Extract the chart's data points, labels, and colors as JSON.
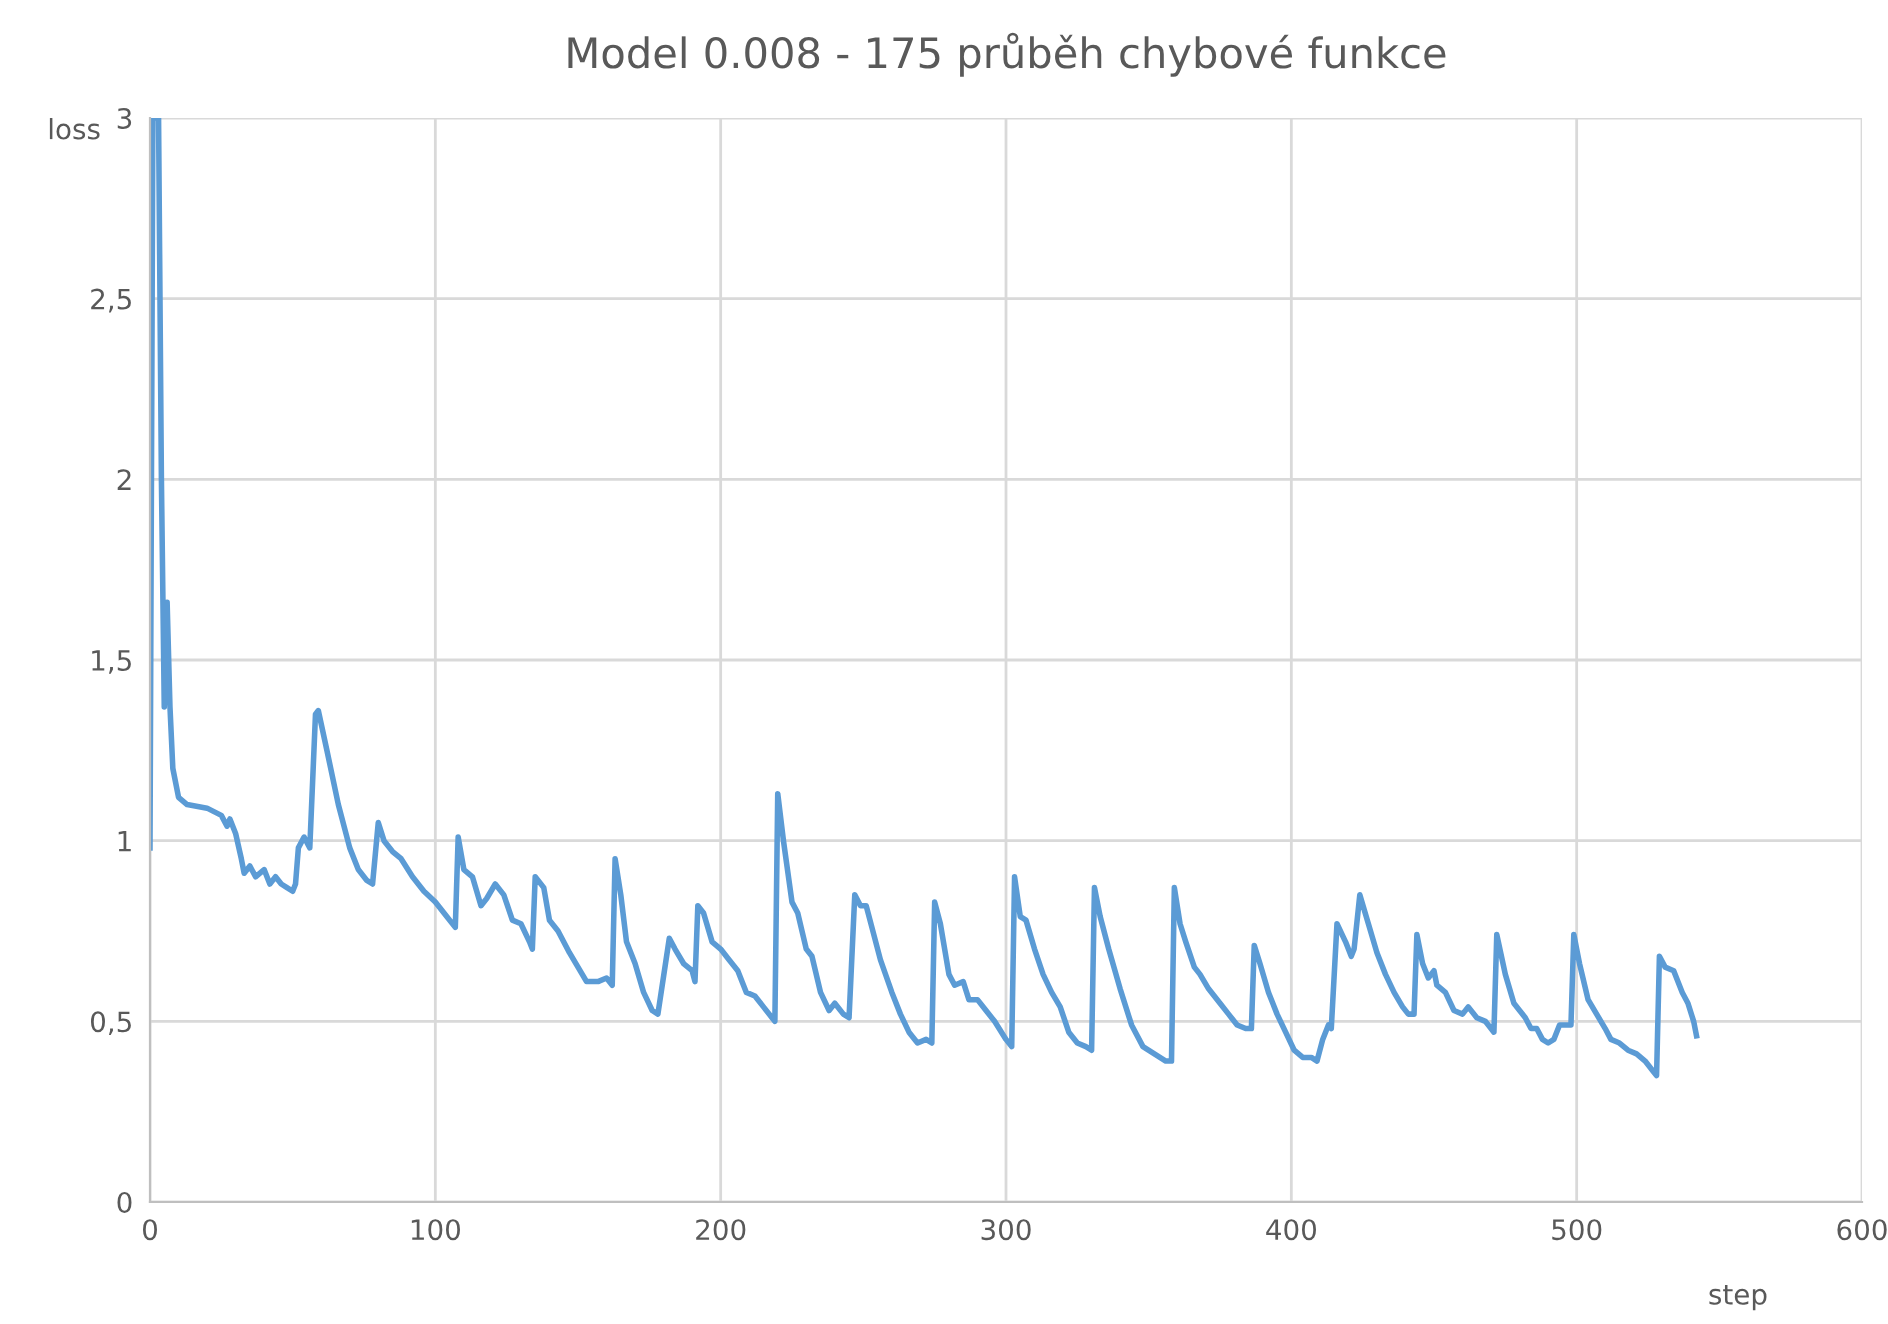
{
  "chart_data": {
    "type": "line",
    "title": "Model 0.008 - 175 průběh chybové funkce",
    "xlabel": "step",
    "ylabel": "loss",
    "xlim": [
      0,
      600
    ],
    "xticks": [
      0,
      100,
      200,
      300,
      400,
      500,
      600
    ],
    "ylim": [
      0,
      3
    ],
    "yticks": [
      0,
      {
        "value": 0.5,
        "label": "0,5"
      },
      1,
      {
        "value": 1.5,
        "label": "1,5"
      },
      2,
      {
        "value": 2.5,
        "label": "2,5"
      },
      3
    ],
    "grid": true,
    "legend": false,
    "series": [
      {
        "color": "#5b9bd5",
        "x": [
          0,
          1,
          2,
          3,
          4,
          5,
          6,
          7,
          8,
          10,
          13,
          20,
          25,
          27,
          28,
          30,
          32,
          33,
          35,
          37,
          40,
          42,
          44,
          46,
          48,
          50,
          51,
          52,
          54,
          56,
          58,
          59,
          62,
          66,
          70,
          73,
          76,
          78,
          80,
          82,
          85,
          88,
          92,
          96,
          100,
          104,
          107,
          108,
          110,
          113,
          116,
          118,
          121,
          124,
          127,
          130,
          133,
          134,
          135,
          138,
          140,
          143,
          147,
          150,
          153,
          157,
          160,
          162,
          163,
          165,
          167,
          170,
          173,
          176,
          178,
          182,
          184,
          187,
          190,
          191,
          192,
          194,
          197,
          200,
          203,
          206,
          209,
          212,
          215,
          218,
          219,
          220,
          222,
          225,
          227,
          230,
          232,
          235,
          238,
          240,
          243,
          245,
          247,
          249,
          251,
          253,
          256,
          260,
          263,
          266,
          269,
          272,
          274,
          275,
          277,
          280,
          282,
          285,
          287,
          290,
          293,
          296,
          300,
          302,
          303,
          305,
          307,
          310,
          313,
          316,
          319,
          322,
          325,
          328,
          330,
          331,
          333,
          336,
          340,
          344,
          348,
          352,
          356,
          358,
          359,
          361,
          363,
          366,
          368,
          371,
          375,
          378,
          381,
          384,
          386,
          387,
          389,
          392,
          395,
          398,
          401,
          404,
          407,
          409,
          411,
          413,
          414,
          416,
          419,
          421,
          422,
          424,
          427,
          430,
          433,
          436,
          439,
          441,
          443,
          444,
          446,
          447,
          448,
          450,
          451,
          454,
          457,
          460,
          462,
          465,
          468,
          471,
          472,
          475,
          478,
          480,
          482,
          484,
          486,
          488,
          490,
          492,
          494,
          498,
          499,
          501,
          504,
          507,
          510,
          512,
          515,
          518,
          521,
          524,
          527,
          528,
          529,
          531,
          534,
          537,
          539,
          541,
          542
        ],
        "values": [
          0.98,
          3,
          3,
          3,
          2.0,
          1.37,
          1.66,
          1.37,
          1.2,
          1.12,
          1.1,
          1.09,
          1.07,
          1.04,
          1.06,
          1.02,
          0.95,
          0.91,
          0.93,
          0.9,
          0.92,
          0.88,
          0.9,
          0.88,
          0.87,
          0.86,
          0.88,
          0.98,
          1.01,
          0.98,
          1.35,
          1.36,
          1.25,
          1.1,
          0.98,
          0.92,
          0.89,
          0.88,
          1.05,
          1.0,
          0.97,
          0.95,
          0.9,
          0.86,
          0.83,
          0.79,
          0.76,
          1.01,
          0.92,
          0.9,
          0.82,
          0.84,
          0.88,
          0.85,
          0.78,
          0.77,
          0.72,
          0.7,
          0.9,
          0.87,
          0.78,
          0.75,
          0.69,
          0.65,
          0.61,
          0.61,
          0.62,
          0.6,
          0.95,
          0.85,
          0.72,
          0.66,
          0.58,
          0.53,
          0.52,
          0.73,
          0.7,
          0.66,
          0.64,
          0.61,
          0.82,
          0.8,
          0.72,
          0.7,
          0.67,
          0.64,
          0.58,
          0.57,
          0.54,
          0.51,
          0.5,
          1.13,
          1.0,
          0.83,
          0.8,
          0.7,
          0.68,
          0.58,
          0.53,
          0.55,
          0.52,
          0.51,
          0.85,
          0.82,
          0.82,
          0.76,
          0.67,
          0.58,
          0.52,
          0.47,
          0.44,
          0.45,
          0.44,
          0.83,
          0.77,
          0.63,
          0.6,
          0.61,
          0.56,
          0.56,
          0.53,
          0.5,
          0.45,
          0.43,
          0.9,
          0.79,
          0.78,
          0.7,
          0.63,
          0.58,
          0.54,
          0.47,
          0.44,
          0.43,
          0.42,
          0.87,
          0.79,
          0.7,
          0.59,
          0.49,
          0.43,
          0.41,
          0.39,
          0.39,
          0.87,
          0.77,
          0.72,
          0.65,
          0.63,
          0.59,
          0.55,
          0.52,
          0.49,
          0.48,
          0.48,
          0.71,
          0.66,
          0.58,
          0.52,
          0.47,
          0.42,
          0.4,
          0.4,
          0.39,
          0.45,
          0.49,
          0.48,
          0.77,
          0.72,
          0.68,
          0.7,
          0.85,
          0.77,
          0.69,
          0.63,
          0.58,
          0.54,
          0.52,
          0.52,
          0.74,
          0.66,
          0.64,
          0.62,
          0.64,
          0.6,
          0.58,
          0.53,
          0.52,
          0.54,
          0.51,
          0.5,
          0.47,
          0.74,
          0.63,
          0.55,
          0.53,
          0.51,
          0.48,
          0.48,
          0.45,
          0.44,
          0.45,
          0.49,
          0.49,
          0.74,
          0.66,
          0.56,
          0.52,
          0.48,
          0.45,
          0.44,
          0.42,
          0.41,
          0.39,
          0.36,
          0.35,
          0.68,
          0.65,
          0.64,
          0.58,
          0.55,
          0.5,
          0.46
        ]
      }
    ]
  }
}
